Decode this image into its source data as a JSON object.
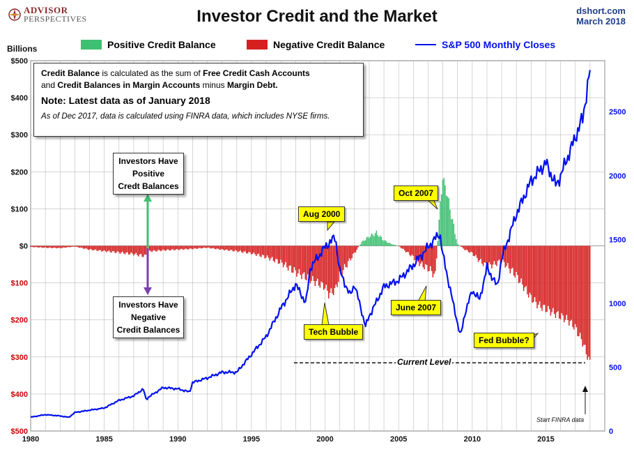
{
  "header": {
    "brand_top": "ADVISOR",
    "brand_bottom": "PERSPECTIVES",
    "title": "Investor Credit and the Market",
    "source_line1": "dshort.com",
    "source_line2": "March 2018"
  },
  "legend": {
    "positive": "Positive Credit Balance",
    "negative": "Negative Credit Balance",
    "sp500": "S&P 500 Monthly Closes"
  },
  "colors": {
    "positive": "#3fbf72",
    "negative": "#d62020",
    "sp500": "#0010ee"
  },
  "notes": {
    "line1_a": "Credit Balance",
    "line1_b": " is calculated as the sum of ",
    "line1_c": "Free Credit Cash Accounts",
    "line2_a": "and ",
    "line2_b": "Credit Balances in Margin Accounts",
    "line2_c": " minus ",
    "line2_d": "Margin Debt.",
    "latest": "Note: Latest data as of January 2018",
    "finra_note": "As of Dec 2017, data is calculated using FINRA data, which includes NYSE firms."
  },
  "annotations": {
    "positive_box": [
      "Investors Have",
      "Positive",
      "Credt Balances"
    ],
    "negative_box": [
      "Investors Have",
      "Negative",
      "Credit Balances"
    ],
    "aug2000": "Aug 2000",
    "oct2007": "Oct 2007",
    "june2007": "June 2007",
    "tech_bubble": "Tech Bubble",
    "fed_bubble": "Fed Bubble?",
    "current_level": "Current Level",
    "start_finra": "Start FINRA data"
  },
  "chart_data": {
    "type": "bar",
    "title": "Investor Credit and the Market",
    "ylabel": "Billions",
    "left_axis": {
      "ticks": [
        500,
        400,
        300,
        200,
        100,
        0,
        -100,
        -200,
        -300,
        -400,
        -500
      ],
      "tick_labels": [
        "$500",
        "$400",
        "$300",
        "$200",
        "$100",
        "$0",
        "$100",
        "$200",
        "$300",
        "$400",
        "$500"
      ],
      "ylim": [
        -500,
        500
      ]
    },
    "right_axis": {
      "ticks": [
        0,
        500,
        1000,
        1500,
        2000,
        2500
      ],
      "tick_labels": [
        "0",
        "500",
        "1000",
        "1500",
        "2000",
        "2500"
      ],
      "ylim": [
        0,
        2900
      ]
    },
    "x_axis": {
      "ticks": [
        1980,
        1985,
        1990,
        1995,
        2000,
        2005,
        2010,
        2015
      ],
      "range": [
        1980,
        2019
      ]
    },
    "grid": true,
    "current_level": -316,
    "credit_balance": {
      "name": "Credit Balance",
      "x": [
        1980,
        1981,
        1982,
        1983,
        1984,
        1985,
        1986,
        1987,
        1987.8,
        1988,
        1989,
        1990,
        1991,
        1992,
        1993,
        1994,
        1995,
        1996,
        1997,
        1998,
        1999,
        2000,
        2000.25,
        2000.7,
        2001,
        2002,
        2002.5,
        2003,
        2003.5,
        2004,
        2004.5,
        2005,
        2005.5,
        2006,
        2006.5,
        2007,
        2007.5,
        2007.83,
        2008,
        2008.3,
        2008.6,
        2009,
        2009.5,
        2010,
        2010.5,
        2011,
        2011.5,
        2012,
        2012.5,
        2013,
        2013.5,
        2014,
        2014.5,
        2015,
        2015.5,
        2016,
        2016.5,
        2017,
        2017.5,
        2018
      ],
      "values": [
        -3,
        -5,
        -6,
        -2,
        -10,
        -14,
        -18,
        -22,
        -28,
        -15,
        -12,
        -10,
        -8,
        -5,
        -10,
        -14,
        -20,
        -30,
        -45,
        -70,
        -90,
        -110,
        -130,
        -120,
        -80,
        -20,
        10,
        25,
        35,
        15,
        5,
        0,
        -15,
        -30,
        -50,
        -60,
        -80,
        110,
        185,
        140,
        80,
        5,
        -10,
        -20,
        -40,
        -55,
        -50,
        -40,
        -60,
        -80,
        -110,
        -140,
        -160,
        -170,
        -180,
        -190,
        -200,
        -220,
        -260,
        -316
      ]
    },
    "series": [
      {
        "name": "S&P 500 Monthly Closes",
        "x": [
          1980,
          1981,
          1982,
          1982.6,
          1983,
          1984,
          1985,
          1986,
          1987,
          1987.65,
          1987.85,
          1988,
          1989,
          1990,
          1990.8,
          1991,
          1992,
          1993,
          1994,
          1995,
          1996,
          1997,
          1998,
          1998.7,
          1999,
          2000,
          2000.7,
          2001,
          2001.7,
          2002,
          2002.75,
          2003,
          2004,
          2005,
          2006,
          2007,
          2007.8,
          2008,
          2008.7,
          2009.2,
          2009.5,
          2010,
          2010.5,
          2011,
          2011.7,
          2012,
          2013,
          2014,
          2015,
          2015.7,
          2016,
          2016.5,
          2017,
          2017.5,
          2018
        ],
        "values": [
          108,
          128,
          118,
          107,
          145,
          163,
          180,
          240,
          275,
          330,
          245,
          265,
          340,
          330,
          305,
          380,
          415,
          460,
          460,
          600,
          740,
          960,
          1150,
          1000,
          1280,
          1440,
          1520,
          1250,
          1060,
          1150,
          820,
          900,
          1130,
          1180,
          1300,
          1440,
          1550,
          1380,
          1000,
          740,
          920,
          1100,
          1030,
          1280,
          1130,
          1350,
          1700,
          1960,
          2100,
          1920,
          2000,
          2150,
          2300,
          2450,
          2820
        ]
      }
    ]
  }
}
